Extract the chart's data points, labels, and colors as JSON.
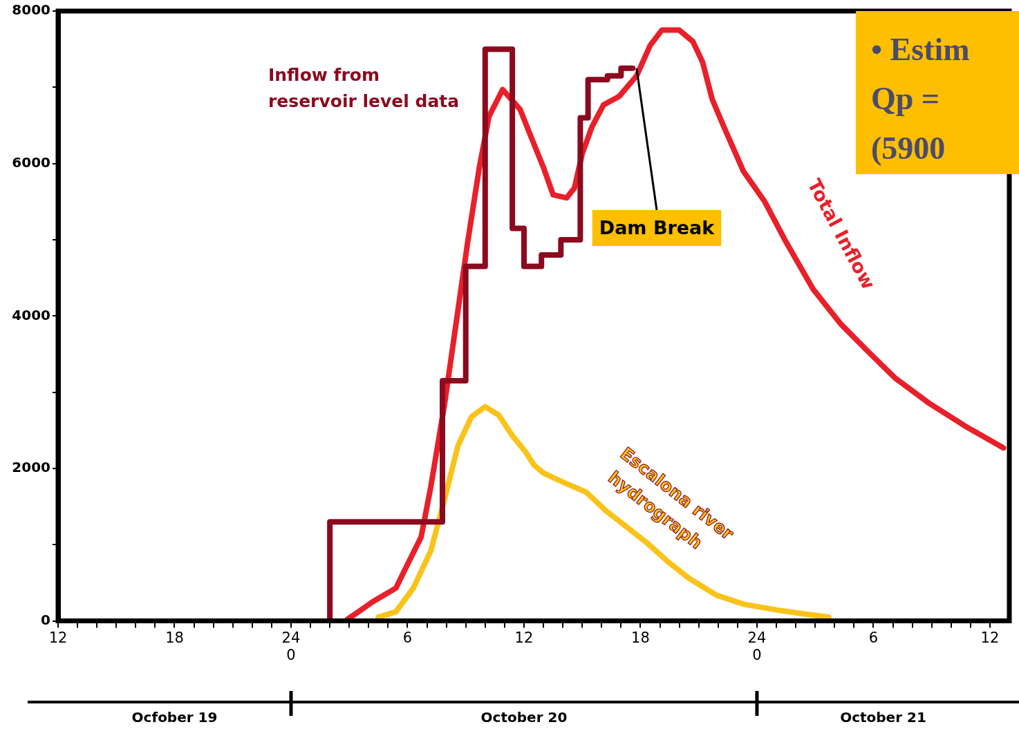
{
  "chart_data": {
    "type": "line",
    "xlim": [
      "--10-19T12:00",
      "--10-21T13:00"
    ],
    "ylim": [
      0,
      8000
    ],
    "xticks": [
      {
        "value": "--10-19T12:00",
        "label": "12"
      },
      {
        "value": "--10-19T13:00",
        "label": null
      },
      {
        "value": "--10-19T14:00",
        "label": null
      },
      {
        "value": "--10-19T15:00",
        "label": null
      },
      {
        "value": "--10-19T16:00",
        "label": null
      },
      {
        "value": "--10-19T17:00",
        "label": null
      },
      {
        "value": "--10-19T18:00",
        "label": "18"
      },
      {
        "value": "--10-19T19:00",
        "label": null
      },
      {
        "value": "--10-19T20:00",
        "label": null
      },
      {
        "value": "--10-19T21:00",
        "label": null
      },
      {
        "value": "--10-19T22:00",
        "label": null
      },
      {
        "value": "--10-19T23:00",
        "label": null
      },
      {
        "value": "--10-20T00:00",
        "label": "24\n0"
      },
      {
        "value": "--10-20T01:00",
        "label": null
      },
      {
        "value": "--10-20T02:00",
        "label": null
      },
      {
        "value": "--10-20T03:00",
        "label": null
      },
      {
        "value": "--10-20T04:00",
        "label": null
      },
      {
        "value": "--10-20T05:00",
        "label": null
      },
      {
        "value": "--10-20T06:00",
        "label": "6"
      },
      {
        "value": "--10-20T07:00",
        "label": null
      },
      {
        "value": "--10-20T08:00",
        "label": null
      },
      {
        "value": "--10-20T09:00",
        "label": null
      },
      {
        "value": "--10-20T10:00",
        "label": null
      },
      {
        "value": "--10-20T11:00",
        "label": null
      },
      {
        "value": "--10-20T12:00",
        "label": "12"
      },
      {
        "value": "--10-20T13:00",
        "label": null
      },
      {
        "value": "--10-20T14:00",
        "label": null
      },
      {
        "value": "--10-20T15:00",
        "label": null
      },
      {
        "value": "--10-20T16:00",
        "label": null
      },
      {
        "value": "--10-20T17:00",
        "label": null
      },
      {
        "value": "--10-20T18:00",
        "label": "18"
      },
      {
        "value": "--10-20T19:00",
        "label": null
      },
      {
        "value": "--10-20T20:00",
        "label": null
      },
      {
        "value": "--10-20T21:00",
        "label": null
      },
      {
        "value": "--10-20T22:00",
        "label": null
      },
      {
        "value": "--10-20T23:00",
        "label": null
      },
      {
        "value": "--10-21T00:00",
        "label": "24\n0"
      },
      {
        "value": "--10-21T01:00",
        "label": null
      },
      {
        "value": "--10-21T02:00",
        "label": null
      },
      {
        "value": "--10-21T03:00",
        "label": null
      },
      {
        "value": "--10-21T04:00",
        "label": null
      },
      {
        "value": "--10-21T05:00",
        "label": null
      },
      {
        "value": "--10-21T06:00",
        "label": "6"
      },
      {
        "value": "--10-21T07:00",
        "label": null
      },
      {
        "value": "--10-21T08:00",
        "label": null
      },
      {
        "value": "--10-21T09:00",
        "label": null
      },
      {
        "value": "--10-21T10:00",
        "label": null
      },
      {
        "value": "--10-21T11:00",
        "label": null
      },
      {
        "value": "--10-21T12:00",
        "label": "12"
      }
    ],
    "yticks": [
      0,
      {
        "value": 1000,
        "label": null
      },
      2000,
      {
        "value": 3000,
        "label": null
      },
      4000,
      {
        "value": 5000,
        "label": null
      },
      6000,
      {
        "value": 7000,
        "label": null
      },
      8000
    ],
    "grid": false,
    "legend": false,
    "marker": "none",
    "line_style": "solid",
    "series": [
      {
        "name": "Inflow from\nreservoir level data",
        "type": "step",
        "color": "#8b0a1e",
        "x": [
          "--10-20T02:00",
          "--10-20T02:00",
          "--10-20T07:48",
          "--10-20T09:00",
          "--10-20T10:00",
          "--10-20T11:24",
          "--10-20T12:00",
          "--10-20T12:54",
          "--10-20T13:54",
          "--10-20T14:54",
          "--10-20T15:18",
          "--10-20T16:18",
          "--10-20T17:00",
          "--10-20T17:36"
        ],
        "values": [
          0,
          1300,
          3150,
          4650,
          7500,
          5150,
          4650,
          4800,
          5000,
          6600,
          7100,
          7150,
          7250,
          7250
        ]
      },
      {
        "name": "Total Inflow",
        "type": "line",
        "color": "#e8202a",
        "x": [
          "--10-20T02:54",
          "--10-20T04:12",
          "--10-20T05:24",
          "--10-20T05:54",
          "--10-20T06:42",
          "--10-20T07:12",
          "--10-20T07:54",
          "--10-20T08:24",
          "--10-20T09:06",
          "--10-20T09:42",
          "--10-20T10:12",
          "--10-20T10:54",
          "--10-20T11:48",
          "--10-20T12:18",
          "--10-20T13:00",
          "--10-20T13:30",
          "--10-20T14:12",
          "--10-20T14:36",
          "--10-20T15:00",
          "--10-20T15:30",
          "--10-20T16:06",
          "--10-20T16:54",
          "--10-20T17:48",
          "--10-20T18:30",
          "--10-20T19:06",
          "--10-20T20:00",
          "--10-20T20:42",
          "--10-20T21:12",
          "--10-20T21:42",
          "--10-20T22:18",
          "--10-20T23:18",
          "--10-21T00:24",
          "--10-21T01:30",
          "--10-21T02:54",
          "--10-21T04:18",
          "--10-21T05:42",
          "--10-21T07:06",
          "--10-21T08:54",
          "--10-21T10:42",
          "--10-21T12:42"
        ],
        "values": [
          20,
          250,
          430,
          690,
          1100,
          1760,
          2830,
          3720,
          4970,
          5950,
          6620,
          6970,
          6710,
          6390,
          5950,
          5590,
          5550,
          5680,
          6130,
          6480,
          6770,
          6880,
          7150,
          7550,
          7750,
          7750,
          7600,
          7330,
          6840,
          6480,
          5900,
          5500,
          4970,
          4350,
          3900,
          3540,
          3190,
          2850,
          2560,
          2270
        ]
      },
      {
        "name": "Escalona river\nhydrograph",
        "type": "line",
        "color": "#f9c31a",
        "x": [
          "--10-20T04:30",
          "--10-20T05:24",
          "--10-20T06:18",
          "--10-20T07:12",
          "--10-20T07:54",
          "--10-20T08:36",
          "--10-20T09:18",
          "--10-20T10:00",
          "--10-20T10:42",
          "--10-20T11:24",
          "--10-20T12:06",
          "--10-20T12:30",
          "--10-20T13:00",
          "--10-20T14:06",
          "--10-20T15:12",
          "--10-20T16:12",
          "--10-20T17:18",
          "--10-20T18:24",
          "--10-20T19:24",
          "--10-20T20:30",
          "--10-20T21:54",
          "--10-20T23:18",
          "--10-21T01:06",
          "--10-21T02:30",
          "--10-21T03:42"
        ],
        "values": [
          50,
          120,
          430,
          920,
          1590,
          2300,
          2680,
          2810,
          2700,
          2430,
          2210,
          2050,
          1940,
          1810,
          1690,
          1450,
          1230,
          1010,
          780,
          560,
          340,
          220,
          140,
          90,
          50
        ]
      }
    ],
    "annotations": [
      {
        "text": "Dam Break",
        "x": "--10-20T17:48",
        "y": 7250
      },
      "•  Estim\nQp =\n(5900",
      "Ocfober 19",
      "October 20",
      "October 21"
    ]
  }
}
